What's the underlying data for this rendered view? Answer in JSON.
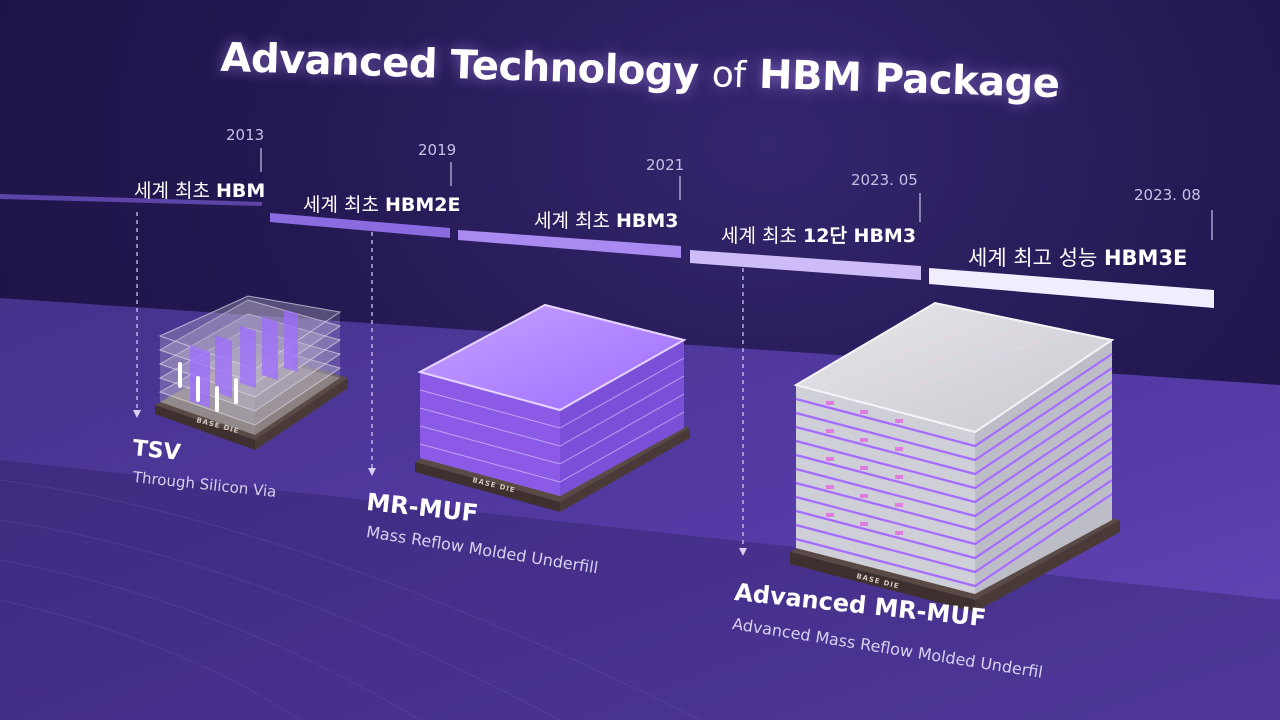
{
  "title": {
    "main_prefix": "Advanced Technology",
    "of": "of",
    "main_suffix": "HBM Package"
  },
  "milestones": [
    {
      "year": "2013",
      "prefix": "세계 최초",
      "product": "HBM"
    },
    {
      "year": "2019",
      "prefix": "세계 최초",
      "product": "HBM2E"
    },
    {
      "year": "2021",
      "prefix": "세계 최초",
      "product": "HBM3"
    },
    {
      "year": "2023. 05",
      "prefix": "세계 최초",
      "product": "12단 HBM3"
    },
    {
      "year": "2023. 08",
      "prefix": "세계 최고 성능",
      "product": "HBM3E"
    }
  ],
  "technologies": [
    {
      "name": "TSV",
      "description": "Through Silicon Via"
    },
    {
      "name": "MR-MUF",
      "description": "Mass Reflow Molded Underfill"
    },
    {
      "name": "Advanced MR-MUF",
      "description": "Advanced Mass Reflow Molded Underfil"
    }
  ],
  "base_die_label": "BASE DIE",
  "colors": {
    "accent_purple": "#9a6cff",
    "timeline_light": "#e9e3ff",
    "background": "#1f1543"
  }
}
